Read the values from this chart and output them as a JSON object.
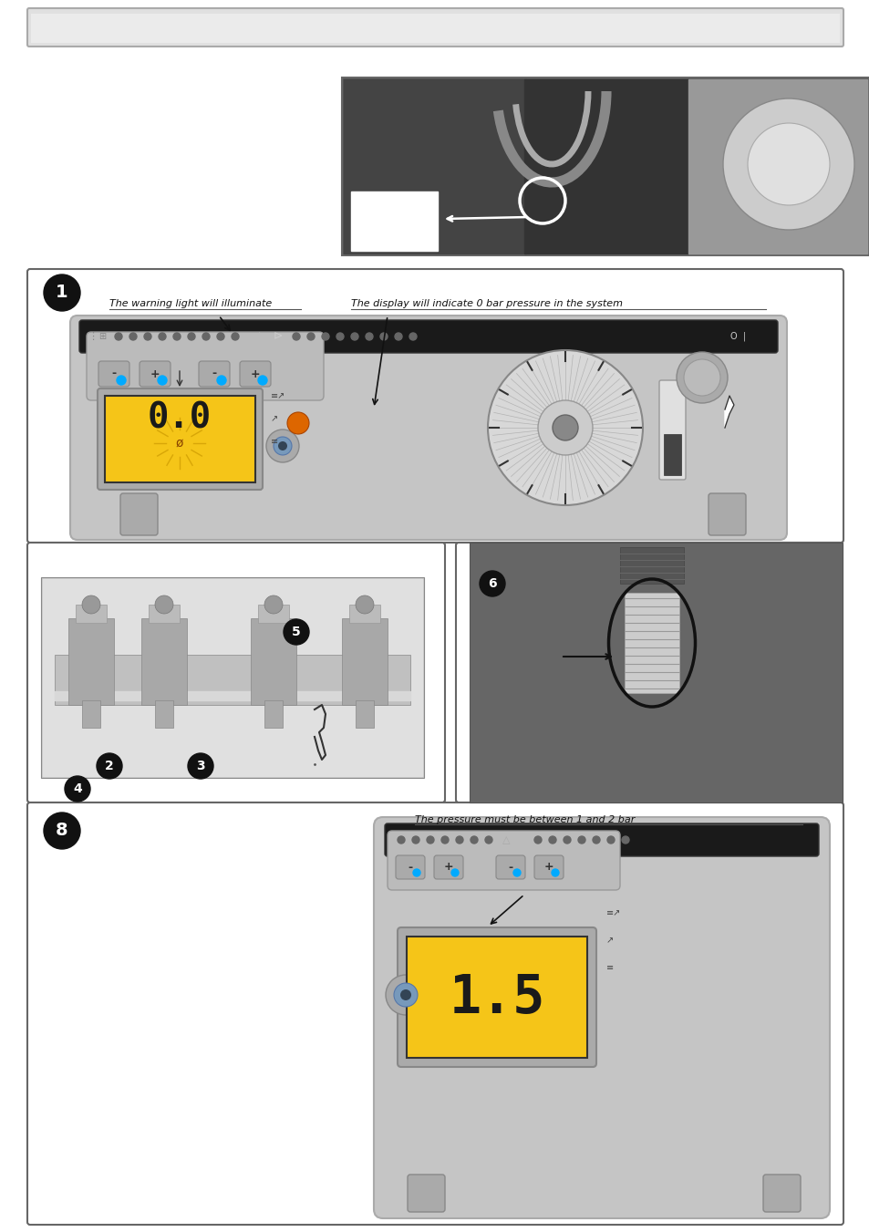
{
  "page_bg": "#ffffff",
  "header_bar_color": "#e0e0e0",
  "header_bar_border": "#aaaaaa",
  "label_warning": "The warning light will illuminate",
  "label_display": "The display will indicate 0 bar pressure in the system",
  "label_pressure": "The pressure must be between 1 and 2 bar",
  "display_00": "0.0",
  "display_15": "1.5",
  "display_bg": "#f5c518",
  "boiler_body_color": "#b8b8b8",
  "boiler_body_color2": "#d0d0d0",
  "dark_bar_bg": "#1a1a1a",
  "num_circle_color": "#111111",
  "num_circle_text": "#ffffff",
  "photo_dark": "#555555",
  "photo_mid": "#888888",
  "photo_light": "#aaaaaa",
  "button_color": "#999999",
  "led_blue": "#00aaff",
  "led_orange": "#dd6600",
  "panel_border": "#666666",
  "text_black": "#000000",
  "arrow_color": "#222222",
  "white": "#ffffff",
  "light_gray": "#e8e8e8",
  "mid_gray": "#c0c0c0"
}
